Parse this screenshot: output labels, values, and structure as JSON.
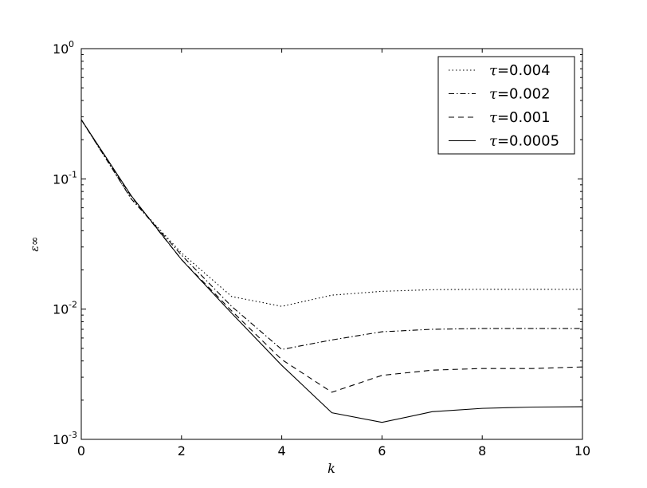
{
  "chart_data": {
    "type": "line",
    "title": "",
    "xlabel": "k",
    "ylabel": "ε∞",
    "xlim": [
      0,
      10
    ],
    "ylim": [
      0.001,
      1
    ],
    "yscale": "log",
    "grid": false,
    "legend_position": "top-right",
    "x_ticks": [
      0,
      2,
      4,
      6,
      8,
      10
    ],
    "x_tick_labels": [
      "0",
      "2",
      "4",
      "6",
      "8",
      "10"
    ],
    "y_ticks": [
      0.001,
      0.01,
      0.1,
      1
    ],
    "y_tick_labels": [
      {
        "base": "10",
        "exp": "-3"
      },
      {
        "base": "10",
        "exp": "-2"
      },
      {
        "base": "10",
        "exp": "-1"
      },
      {
        "base": "10",
        "exp": "0"
      }
    ],
    "x": [
      0,
      1,
      2,
      3,
      4,
      5,
      6,
      7,
      8,
      9,
      10
    ],
    "series": [
      {
        "name": "τ=0.004",
        "symbol": "τ",
        "value": "=0.004",
        "style": "dotted",
        "values": [
          0.285,
          0.07,
          0.027,
          0.0125,
          0.0105,
          0.0128,
          0.0137,
          0.0141,
          0.0142,
          0.0142,
          0.0142
        ]
      },
      {
        "name": "τ=0.002",
        "symbol": "τ",
        "value": "=0.002",
        "style": "dashdot",
        "values": [
          0.285,
          0.07,
          0.026,
          0.0105,
          0.0049,
          0.0058,
          0.0067,
          0.007,
          0.0071,
          0.0071,
          0.0071
        ]
      },
      {
        "name": "τ=0.001",
        "symbol": "τ",
        "value": "=0.001",
        "style": "dashed",
        "values": [
          0.285,
          0.073,
          0.024,
          0.0097,
          0.0041,
          0.0023,
          0.0031,
          0.0034,
          0.0035,
          0.0035,
          0.0036
        ]
      },
      {
        "name": "τ=0.0005",
        "symbol": "τ",
        "value": "=0.0005",
        "style": "solid",
        "values": [
          0.285,
          0.074,
          0.024,
          0.0093,
          0.0037,
          0.0016,
          0.00135,
          0.00163,
          0.00173,
          0.00177,
          0.00178
        ]
      }
    ]
  }
}
